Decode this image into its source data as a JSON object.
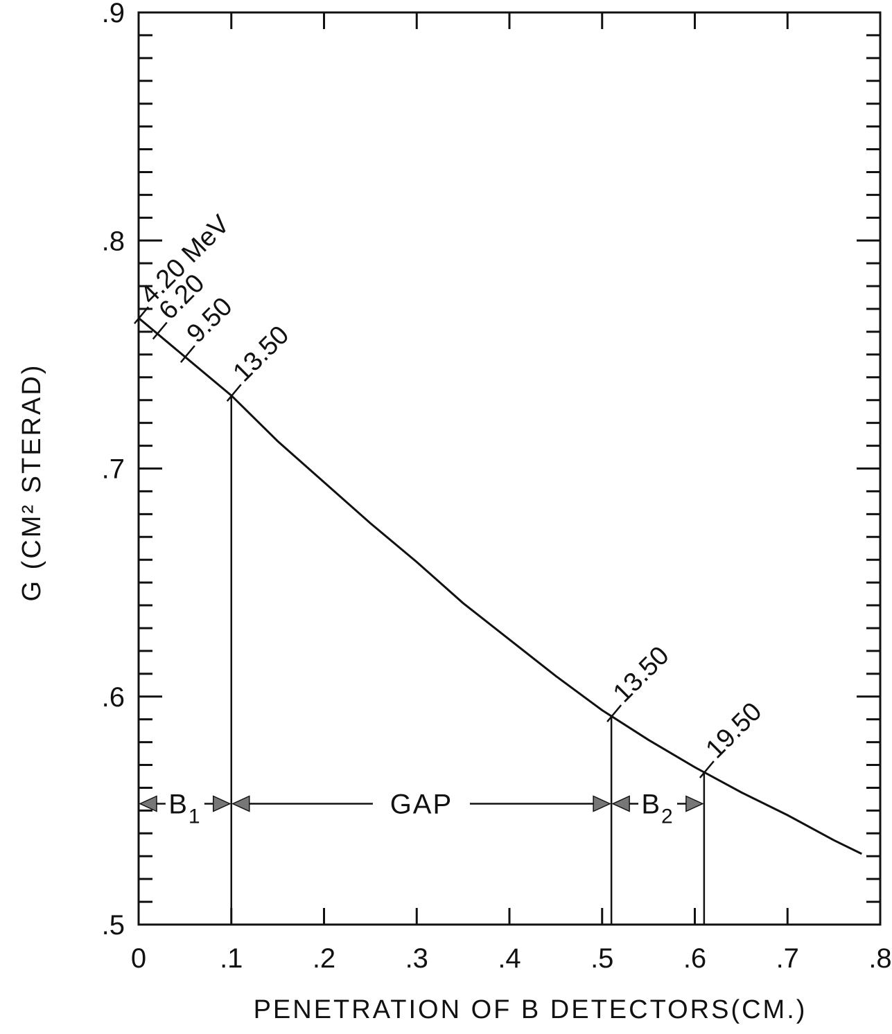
{
  "chart_data": {
    "type": "line",
    "title": "",
    "xlabel": "PENETRATION OF B DETECTORS(CM.)",
    "ylabel": "G (CM² STERAD)",
    "xlim": [
      0,
      0.8
    ],
    "ylim": [
      0.5,
      0.9
    ],
    "x_ticks": [
      {
        "value": 0,
        "label": "0"
      },
      {
        "value": 0.1,
        "label": ".1"
      },
      {
        "value": 0.2,
        "label": ".2"
      },
      {
        "value": 0.3,
        "label": ".3"
      },
      {
        "value": 0.4,
        "label": ".4"
      },
      {
        "value": 0.5,
        "label": ".5"
      },
      {
        "value": 0.6,
        "label": ".6"
      },
      {
        "value": 0.7,
        "label": ".7"
      },
      {
        "value": 0.8,
        "label": ".8"
      }
    ],
    "y_ticks": [
      {
        "value": 0.5,
        "label": ".5"
      },
      {
        "value": 0.6,
        "label": ".6"
      },
      {
        "value": 0.7,
        "label": ".7"
      },
      {
        "value": 0.8,
        "label": ".8"
      },
      {
        "value": 0.9,
        "label": ".9"
      }
    ],
    "y_minor_step": 0.01,
    "grid": false,
    "series": [
      {
        "x": [
          0,
          0.05,
          0.1,
          0.15,
          0.2,
          0.25,
          0.3,
          0.35,
          0.4,
          0.45,
          0.5,
          0.55,
          0.6,
          0.65,
          0.7,
          0.75,
          0.78
        ],
        "y": [
          0.766,
          0.749,
          0.732,
          0.712,
          0.694,
          0.676,
          0.659,
          0.641,
          0.625,
          0.609,
          0.594,
          0.581,
          0.569,
          0.558,
          0.548,
          0.537,
          0.531
        ]
      }
    ],
    "annotations": [
      {
        "text": "4.20 MeV",
        "x": 0.0,
        "y": 0.766
      },
      {
        "text": "6.20",
        "x": 0.02,
        "y": 0.759
      },
      {
        "text": "9.50",
        "x": 0.05,
        "y": 0.749
      },
      {
        "text": "13.50",
        "x": 0.1,
        "y": 0.732
      },
      {
        "text": "13.50",
        "x": 0.51,
        "y": 0.606
      },
      {
        "text": "19.50",
        "x": 0.61,
        "y": 0.587
      }
    ],
    "boundaries": [
      0.1,
      0.51,
      0.61
    ],
    "regions": [
      {
        "label": "B",
        "sub": "1",
        "from": 0.0,
        "to": 0.1
      },
      {
        "label": "GAP",
        "sub": "",
        "from": 0.1,
        "to": 0.51
      },
      {
        "label": "B",
        "sub": "2",
        "from": 0.51,
        "to": 0.61
      }
    ],
    "region_y": 0.553,
    "colors": {
      "ink": "#111111",
      "arrowhead": "#777777"
    }
  }
}
